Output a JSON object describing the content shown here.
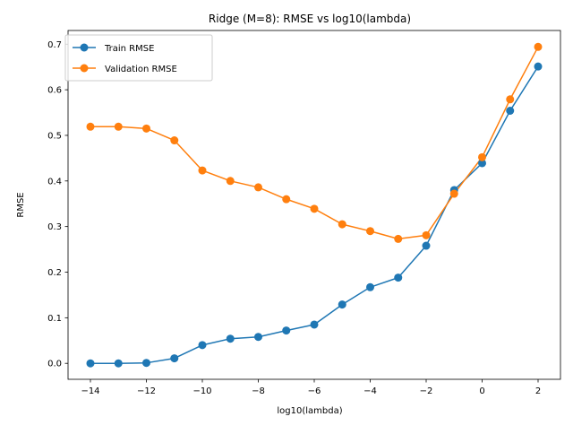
{
  "chart_data": {
    "type": "line",
    "title": "Ridge (M=8): RMSE vs log10(lambda)",
    "xlabel": "log10(lambda)",
    "ylabel": "RMSE",
    "xlim": [
      -14.8,
      2.8
    ],
    "ylim": [
      -0.035,
      0.73
    ],
    "xticks": [
      -14,
      -12,
      -10,
      -8,
      -6,
      -4,
      -2,
      0,
      2
    ],
    "yticks": [
      0.0,
      0.1,
      0.2,
      0.3,
      0.4,
      0.5,
      0.6,
      0.7
    ],
    "x": [
      -14,
      -13,
      -12,
      -11,
      -10,
      -9,
      -8,
      -7,
      -6,
      -5,
      -4,
      -3,
      -2,
      -1,
      0,
      1,
      2
    ],
    "series": [
      {
        "name": "Train RMSE",
        "color": "#1f77b4",
        "values": [
          0.0,
          0.0,
          0.001,
          0.011,
          0.04,
          0.054,
          0.058,
          0.072,
          0.085,
          0.129,
          0.167,
          0.188,
          0.258,
          0.38,
          0.439,
          0.554,
          0.651
        ]
      },
      {
        "name": "Validation RMSE",
        "color": "#ff7f0e",
        "values": [
          0.519,
          0.519,
          0.515,
          0.489,
          0.423,
          0.4,
          0.386,
          0.36,
          0.339,
          0.305,
          0.29,
          0.273,
          0.281,
          0.372,
          0.452,
          0.579,
          0.694
        ]
      }
    ],
    "grid": false,
    "legend_position": "upper-left"
  }
}
